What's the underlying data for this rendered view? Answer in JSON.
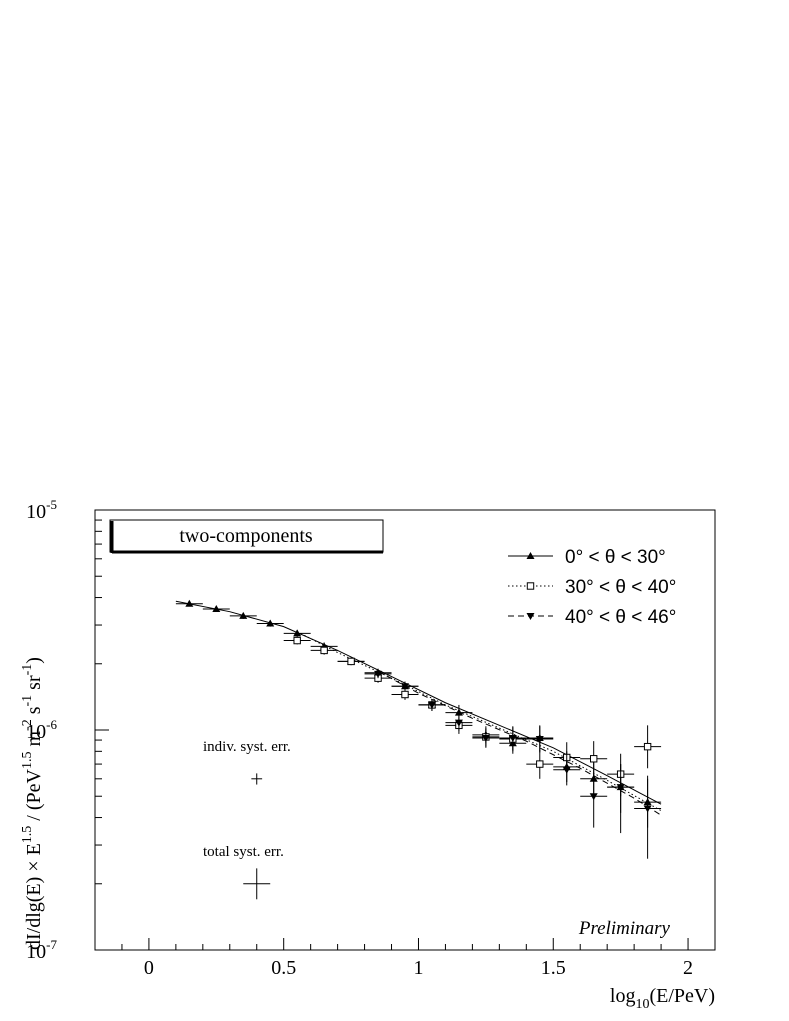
{
  "chart_data": {
    "type": "scatter",
    "title": "",
    "box_label": "two-components",
    "watermark": "Preliminary",
    "xlabel": {
      "base": "log",
      "sub": "10",
      "rest": "(E/PeV)"
    },
    "ylabel": {
      "a": "dI/dlg(E) × E",
      "a_sup": "1.5",
      "b": " / (PeV",
      "b_sup": "1.5",
      "c": " m",
      "c_sup": "-2",
      "d": " s",
      "d_sup": "-1",
      "e": " sr",
      "e_sup": "-1",
      "f": ")"
    },
    "xlim": [
      -0.2,
      2.1
    ],
    "ylim": [
      1e-07,
      1e-05
    ],
    "yscale": "log",
    "x_ticks": [
      {
        "v": 0,
        "label": "0"
      },
      {
        "v": 0.5,
        "label": "0.5"
      },
      {
        "v": 1,
        "label": "1"
      },
      {
        "v": 1.5,
        "label": "1.5"
      },
      {
        "v": 2,
        "label": "2"
      }
    ],
    "y_ticks": [
      {
        "v": 1e-07,
        "base": "10",
        "exp": "-7"
      },
      {
        "v": 1e-06,
        "base": "10",
        "exp": "-6"
      },
      {
        "v": 1e-05,
        "base": "10",
        "exp": "-5"
      }
    ],
    "legend_position": "top-right",
    "series": [
      {
        "name": "0° < θ < 30°",
        "marker": "triangle-up",
        "line": "solid",
        "points": [
          {
            "x": 0.15,
            "y": 3.75e-06,
            "ylo": 3.65e-06,
            "yhi": 3.85e-06
          },
          {
            "x": 0.25,
            "y": 3.55e-06,
            "ylo": 3.45e-06,
            "yhi": 3.65e-06
          },
          {
            "x": 0.35,
            "y": 3.3e-06,
            "ylo": 3.2e-06,
            "yhi": 3.4e-06
          },
          {
            "x": 0.45,
            "y": 3.05e-06,
            "ylo": 2.95e-06,
            "yhi": 3.15e-06
          },
          {
            "x": 0.55,
            "y": 2.75e-06,
            "ylo": 2.65e-06,
            "yhi": 2.85e-06
          },
          {
            "x": 0.65,
            "y": 2.4e-06,
            "ylo": 2.3e-06,
            "yhi": 2.5e-06
          },
          {
            "x": 0.75,
            "y": 2.05e-06,
            "ylo": 1.98e-06,
            "yhi": 2.12e-06
          },
          {
            "x": 0.85,
            "y": 1.82e-06,
            "ylo": 1.75e-06,
            "yhi": 1.9e-06
          },
          {
            "x": 0.95,
            "y": 1.58e-06,
            "ylo": 1.5e-06,
            "yhi": 1.66e-06
          },
          {
            "x": 1.05,
            "y": 1.3e-06,
            "ylo": 1.22e-06,
            "yhi": 1.38e-06
          },
          {
            "x": 1.15,
            "y": 1.2e-06,
            "ylo": 1.1e-06,
            "yhi": 1.3e-06
          },
          {
            "x": 1.25,
            "y": 9.5e-07,
            "ylo": 8.7e-07,
            "yhi": 1.04e-06
          },
          {
            "x": 1.35,
            "y": 8.7e-07,
            "ylo": 7.8e-07,
            "yhi": 9.7e-07
          },
          {
            "x": 1.45,
            "y": 9.2e-07,
            "ylo": 8e-07,
            "yhi": 1.05e-06
          },
          {
            "x": 1.55,
            "y": 6.8e-07,
            "ylo": 5.8e-07,
            "yhi": 8e-07
          },
          {
            "x": 1.65,
            "y": 6e-07,
            "ylo": 4.9e-07,
            "yhi": 7.3e-07
          },
          {
            "x": 1.75,
            "y": 5.5e-07,
            "ylo": 4.2e-07,
            "yhi": 7e-07
          },
          {
            "x": 1.85,
            "y": 4.7e-07,
            "ylo": 3.6e-07,
            "yhi": 6e-07
          }
        ],
        "fit": [
          [
            0.1,
            3.85e-06
          ],
          [
            0.3,
            3.45e-06
          ],
          [
            0.5,
            2.95e-06
          ],
          [
            0.7,
            2.3e-06
          ],
          [
            0.9,
            1.75e-06
          ],
          [
            1.1,
            1.33e-06
          ],
          [
            1.3,
            1.05e-06
          ],
          [
            1.5,
            8.3e-07
          ],
          [
            1.7,
            6.2e-07
          ],
          [
            1.9,
            4.6e-07
          ]
        ]
      },
      {
        "name": "30° < θ < 40°",
        "marker": "open-square",
        "line": "dotted",
        "points": [
          {
            "x": 0.55,
            "y": 2.55e-06,
            "ylo": 2.45e-06,
            "yhi": 2.65e-06
          },
          {
            "x": 0.65,
            "y": 2.3e-06,
            "ylo": 2.2e-06,
            "yhi": 2.4e-06
          },
          {
            "x": 0.75,
            "y": 2.05e-06,
            "ylo": 1.97e-06,
            "yhi": 2.13e-06
          },
          {
            "x": 0.85,
            "y": 1.72e-06,
            "ylo": 1.64e-06,
            "yhi": 1.8e-06
          },
          {
            "x": 0.95,
            "y": 1.45e-06,
            "ylo": 1.37e-06,
            "yhi": 1.53e-06
          },
          {
            "x": 1.05,
            "y": 1.3e-06,
            "ylo": 1.22e-06,
            "yhi": 1.38e-06
          },
          {
            "x": 1.15,
            "y": 1.05e-06,
            "ylo": 9.6e-07,
            "yhi": 1.14e-06
          },
          {
            "x": 1.25,
            "y": 9.3e-07,
            "ylo": 8.4e-07,
            "yhi": 1.02e-06
          },
          {
            "x": 1.35,
            "y": 9.1e-07,
            "ylo": 8e-07,
            "yhi": 1.03e-06
          },
          {
            "x": 1.45,
            "y": 7e-07,
            "ylo": 6e-07,
            "yhi": 8.1e-07
          },
          {
            "x": 1.55,
            "y": 7.5e-07,
            "ylo": 6.4e-07,
            "yhi": 8.8e-07
          },
          {
            "x": 1.65,
            "y": 7.4e-07,
            "ylo": 6.1e-07,
            "yhi": 8.9e-07
          },
          {
            "x": 1.75,
            "y": 6.3e-07,
            "ylo": 5e-07,
            "yhi": 7.8e-07
          },
          {
            "x": 1.85,
            "y": 8.4e-07,
            "ylo": 6.7e-07,
            "yhi": 1.05e-06
          }
        ],
        "fit": [
          [
            0.55,
            2.8e-06
          ],
          [
            0.7,
            2.25e-06
          ],
          [
            0.9,
            1.72e-06
          ],
          [
            1.1,
            1.3e-06
          ],
          [
            1.3,
            1.02e-06
          ],
          [
            1.5,
            8e-07
          ],
          [
            1.7,
            5.9e-07
          ],
          [
            1.9,
            4.3e-07
          ]
        ]
      },
      {
        "name": "40° < θ < 46°",
        "marker": "triangle-down",
        "line": "dashed",
        "points": [
          {
            "x": 0.85,
            "y": 1.8e-06,
            "ylo": 1.72e-06,
            "yhi": 1.88e-06
          },
          {
            "x": 0.95,
            "y": 1.58e-06,
            "ylo": 1.5e-06,
            "yhi": 1.66e-06
          },
          {
            "x": 1.05,
            "y": 1.3e-06,
            "ylo": 1.22e-06,
            "yhi": 1.38e-06
          },
          {
            "x": 1.15,
            "y": 1.08e-06,
            "ylo": 9.9e-07,
            "yhi": 1.17e-06
          },
          {
            "x": 1.25,
            "y": 9.2e-07,
            "ylo": 8.3e-07,
            "yhi": 1.01e-06
          },
          {
            "x": 1.35,
            "y": 9.2e-07,
            "ylo": 8.1e-07,
            "yhi": 1.04e-06
          },
          {
            "x": 1.45,
            "y": 9.1e-07,
            "ylo": 7.9e-07,
            "yhi": 1.04e-06
          },
          {
            "x": 1.55,
            "y": 6.6e-07,
            "ylo": 5.6e-07,
            "yhi": 7.8e-07
          },
          {
            "x": 1.65,
            "y": 5e-07,
            "ylo": 3.6e-07,
            "yhi": 6.3e-07
          },
          {
            "x": 1.75,
            "y": 5.5e-07,
            "ylo": 3.4e-07,
            "yhi": 7e-07
          },
          {
            "x": 1.85,
            "y": 4.4e-07,
            "ylo": 2.6e-07,
            "yhi": 6.2e-07
          }
        ],
        "fit": [
          [
            0.85,
            1.85e-06
          ],
          [
            1.0,
            1.47e-06
          ],
          [
            1.2,
            1.13e-06
          ],
          [
            1.4,
            8.9e-07
          ],
          [
            1.6,
            6.7e-07
          ],
          [
            1.8,
            4.9e-07
          ],
          [
            1.9,
            4.1e-07
          ]
        ]
      }
    ],
    "syst_errors": [
      {
        "label": "indiv. syst. err.",
        "x": 0.4,
        "y": 6e-07,
        "xerr": 0.02,
        "ylo": 5.65e-07,
        "yhi": 6.35e-07
      },
      {
        "label": "total syst. err.",
        "x": 0.4,
        "y": 2e-07,
        "xerr": 0.05,
        "ylo": 1.7e-07,
        "yhi": 2.35e-07
      }
    ]
  }
}
